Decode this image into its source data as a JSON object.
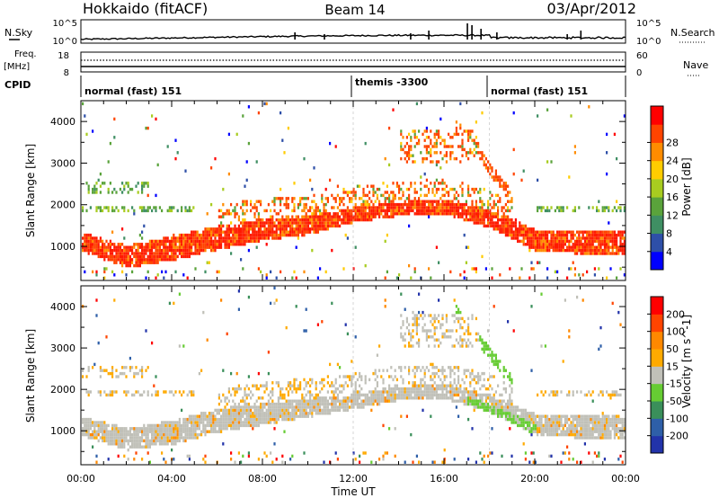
{
  "header": {
    "site": "Hokkaido (fitACF)",
    "beam": "Beam 14",
    "date": "03/Apr/2012"
  },
  "top_panel": {
    "left_label": "N.Sky",
    "right_label": "N.Search",
    "left_ticks": [
      "10^5",
      "10^0"
    ],
    "right_ticks": [
      "10^5",
      "10^0"
    ]
  },
  "freq_panel": {
    "label_line1": "Freq.",
    "label_line2": "[MHz]",
    "left_ticks": [
      "18",
      "8"
    ],
    "right_ticks": [
      "60",
      "0"
    ],
    "right_label": "Nave"
  },
  "cpid_panel": {
    "label": "CPID",
    "segments": [
      {
        "name": "normal (fast) 151",
        "start_hour": 0,
        "end_hour": 12
      },
      {
        "name": "themis -3300",
        "start_hour": 12,
        "end_hour": 18
      },
      {
        "name": "normal (fast) 151",
        "start_hour": 18,
        "end_hour": 24
      }
    ]
  },
  "chart_data": [
    {
      "type": "heatmap",
      "title": "",
      "ylabel": "Slant Range [km]",
      "xlabel": "",
      "ylim": [
        180,
        4500
      ],
      "yticks": [
        "1000",
        "2000",
        "3000",
        "4000"
      ],
      "colorbar": {
        "label": "Power [dB]",
        "ticks": [
          "4",
          "8",
          "12",
          "16",
          "20",
          "24",
          "28"
        ],
        "range": [
          0,
          30
        ],
        "colors": [
          "#0000ff",
          "#2e4fa8",
          "#3f8f63",
          "#5aa33b",
          "#a8cc20",
          "#ffcc00",
          "#ff8c00",
          "#ff4400",
          "#ff0000"
        ]
      },
      "features": {
        "main_band_km": [
          [
            0,
            1100
          ],
          [
            2,
            750
          ],
          [
            4,
            950
          ],
          [
            6,
            1200
          ],
          [
            8,
            1400
          ],
          [
            10,
            1500
          ],
          [
            12,
            1750
          ],
          [
            14,
            1900
          ],
          [
            16,
            1950
          ],
          [
            18,
            1650
          ],
          [
            20,
            1150
          ],
          [
            22,
            1100
          ],
          [
            24,
            1050
          ]
        ]
      }
    },
    {
      "type": "heatmap",
      "title": "",
      "ylabel": "Slant Range [km]",
      "xlabel": "Time UT",
      "ylim": [
        180,
        4500
      ],
      "yticks": [
        "1000",
        "2000",
        "3000",
        "4000"
      ],
      "xticks": [
        "00:00",
        "04:00",
        "08:00",
        "12:00",
        "16:00",
        "20:00",
        "00:00"
      ],
      "colorbar": {
        "label": "Velocity [m s^-1]",
        "ticks": [
          "200",
          "100",
          "50",
          "15",
          "-15",
          "-50",
          "-100",
          "-200"
        ],
        "range": [
          -250,
          250
        ],
        "colors": [
          "#2233aa",
          "#2e5fa8",
          "#3a8f5a",
          "#66cc33",
          "#c0c0b8",
          "#ffaa00",
          "#ff8800",
          "#ff4400",
          "#ff0000"
        ]
      },
      "features": {
        "main_band_km": [
          [
            0,
            1100
          ],
          [
            2,
            800
          ],
          [
            4,
            950
          ],
          [
            6,
            1250
          ],
          [
            8,
            1400
          ],
          [
            10,
            1550
          ],
          [
            12,
            1700
          ],
          [
            14,
            1900
          ],
          [
            16,
            1950
          ],
          [
            18,
            1650
          ],
          [
            20,
            1150
          ],
          [
            22,
            1100
          ],
          [
            24,
            1050
          ]
        ]
      }
    }
  ]
}
